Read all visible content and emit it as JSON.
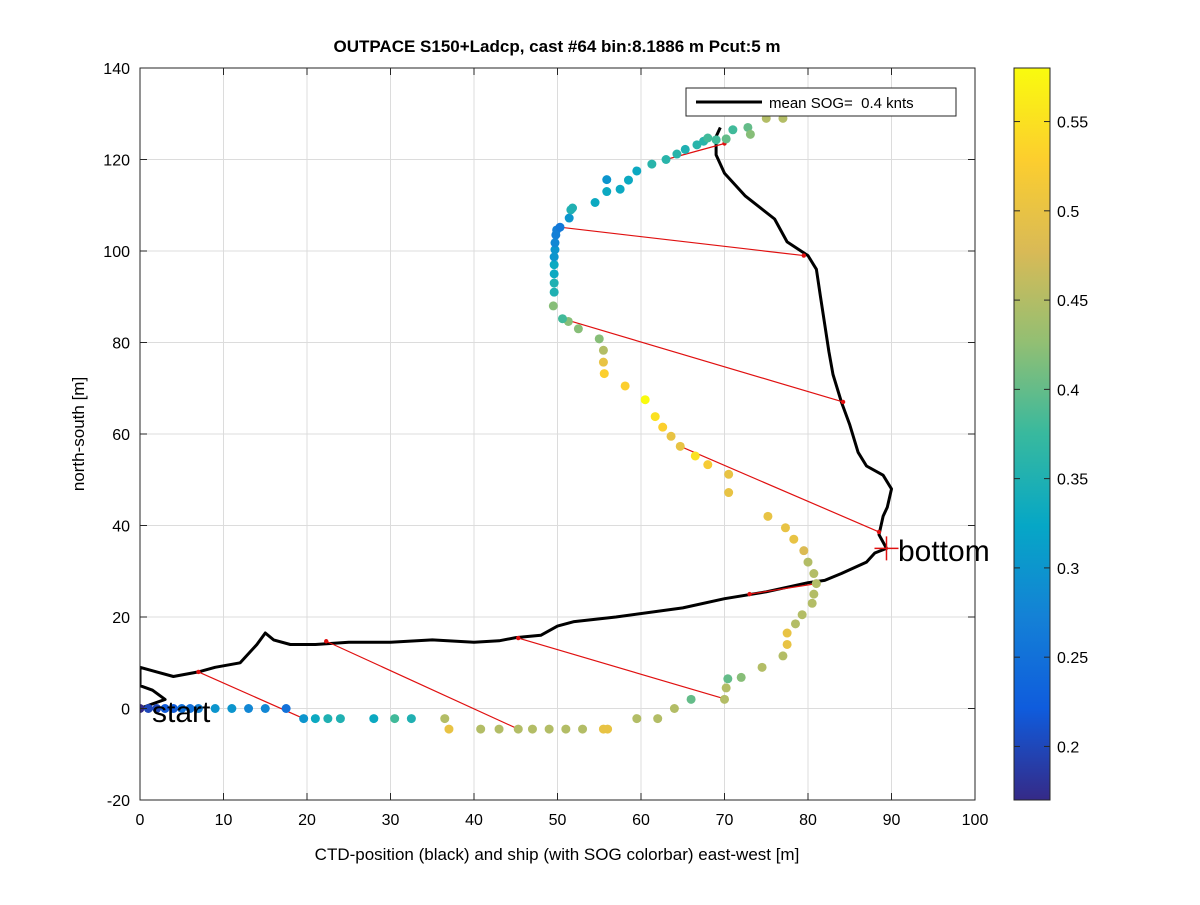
{
  "chart_data": {
    "type": "scatter",
    "title": "OUTPACE S150+Ladcp, cast #64 bin:8.1886 m  Pcut:5 m",
    "xlabel": "CTD-position (black) and ship (with SOG colorbar) east-west [m]",
    "ylabel": "north-south [m]",
    "xlim": [
      0,
      100
    ],
    "ylim": [
      -20,
      140
    ],
    "xticks": [
      0,
      10,
      20,
      30,
      40,
      50,
      60,
      70,
      80,
      90,
      100
    ],
    "yticks": [
      -20,
      0,
      20,
      40,
      60,
      80,
      100,
      120,
      140
    ],
    "grid": true,
    "legend": {
      "position": "top-right",
      "entries": [
        "mean SOG=  0.4 knts"
      ]
    },
    "annotations": [
      {
        "text": "start",
        "x": 0.2,
        "y": 0
      },
      {
        "text": "bottom",
        "x": 89.4,
        "y": 35
      }
    ],
    "colorbar": {
      "clim": [
        0.17,
        0.58
      ],
      "ticks": [
        0.2,
        0.25,
        0.3,
        0.35,
        0.4,
        0.45,
        0.5,
        0.55
      ],
      "tick_labels": [
        "0.2",
        "0.25",
        "0.3",
        "0.35",
        "0.4",
        "0.45",
        "0.5",
        "0.55"
      ]
    },
    "ctd_track": [
      [
        0,
        0
      ],
      [
        1.5,
        1
      ],
      [
        3,
        2
      ],
      [
        1.5,
        4
      ],
      [
        0,
        5
      ],
      [
        0,
        9
      ],
      [
        2,
        8
      ],
      [
        4,
        7
      ],
      [
        7,
        8
      ],
      [
        9,
        9
      ],
      [
        12,
        10
      ],
      [
        14,
        14
      ],
      [
        15,
        16.5
      ],
      [
        16,
        15
      ],
      [
        18,
        14
      ],
      [
        21,
        14
      ],
      [
        25,
        14.5
      ],
      [
        30,
        14.5
      ],
      [
        35,
        15
      ],
      [
        40,
        14.5
      ],
      [
        43,
        14.8
      ],
      [
        45,
        15.5
      ],
      [
        48,
        16
      ],
      [
        50,
        18
      ],
      [
        52,
        19
      ],
      [
        57,
        20
      ],
      [
        65,
        22
      ],
      [
        70,
        24
      ],
      [
        75,
        25.5
      ],
      [
        80,
        27.5
      ],
      [
        82,
        28
      ],
      [
        84,
        29.5
      ],
      [
        87,
        32
      ],
      [
        88,
        34
      ],
      [
        89.4,
        35
      ],
      [
        88.5,
        38
      ],
      [
        89,
        42
      ],
      [
        89.5,
        44
      ],
      [
        90,
        48
      ],
      [
        89,
        51
      ],
      [
        87,
        53
      ],
      [
        86,
        56
      ],
      [
        85,
        62
      ],
      [
        84,
        67
      ],
      [
        83,
        73
      ],
      [
        82.5,
        78
      ],
      [
        82,
        84
      ],
      [
        81.5,
        90
      ],
      [
        81,
        96
      ],
      [
        80,
        99
      ],
      [
        77.5,
        102
      ],
      [
        76,
        107
      ],
      [
        72.5,
        112
      ],
      [
        70,
        117
      ],
      [
        69,
        121
      ],
      [
        69,
        125
      ],
      [
        69.5,
        127
      ]
    ],
    "ship_points": [
      [
        0,
        0,
        0.17
      ],
      [
        1,
        0,
        0.2
      ],
      [
        2,
        0,
        0.2
      ],
      [
        3,
        0,
        0.22
      ],
      [
        4,
        0,
        0.22
      ],
      [
        5,
        0,
        0.25
      ],
      [
        6,
        0,
        0.25
      ],
      [
        7,
        0,
        0.27
      ],
      [
        9,
        0,
        0.3
      ],
      [
        11,
        0,
        0.3
      ],
      [
        13,
        0,
        0.28
      ],
      [
        15,
        0,
        0.28
      ],
      [
        17.5,
        0,
        0.25
      ],
      [
        19.6,
        -2.2,
        0.3
      ],
      [
        21,
        -2.2,
        0.33
      ],
      [
        22.5,
        -2.2,
        0.35
      ],
      [
        24,
        -2.2,
        0.35
      ],
      [
        28,
        -2.2,
        0.33
      ],
      [
        30.5,
        -2.2,
        0.38
      ],
      [
        32.5,
        -2.2,
        0.35
      ],
      [
        36.5,
        -2.2,
        0.45
      ],
      [
        37,
        -4.5,
        0.5
      ],
      [
        40.8,
        -4.5,
        0.45
      ],
      [
        43,
        -4.5,
        0.45
      ],
      [
        45.3,
        -4.5,
        0.45
      ],
      [
        47,
        -4.5,
        0.45
      ],
      [
        49,
        -4.5,
        0.45
      ],
      [
        51,
        -4.5,
        0.45
      ],
      [
        53,
        -4.5,
        0.45
      ],
      [
        55.5,
        -4.5,
        0.5
      ],
      [
        56,
        -4.5,
        0.5
      ],
      [
        59.5,
        -2.2,
        0.45
      ],
      [
        62,
        -2.2,
        0.45
      ],
      [
        64,
        0,
        0.45
      ],
      [
        66,
        2,
        0.4
      ],
      [
        70,
        2,
        0.45
      ],
      [
        70.2,
        4.5,
        0.45
      ],
      [
        70.4,
        6.5,
        0.4
      ],
      [
        72,
        6.8,
        0.42
      ],
      [
        74.5,
        9,
        0.45
      ],
      [
        77,
        11.5,
        0.45
      ],
      [
        77.5,
        14,
        0.5
      ],
      [
        77.5,
        16.5,
        0.5
      ],
      [
        78.5,
        18.5,
        0.45
      ],
      [
        79.3,
        20.5,
        0.45
      ],
      [
        80.5,
        23,
        0.45
      ],
      [
        80.7,
        25,
        0.45
      ],
      [
        81,
        27.3,
        0.45
      ],
      [
        80.7,
        29.5,
        0.45
      ],
      [
        80,
        32,
        0.45
      ],
      [
        79.5,
        34.5,
        0.48
      ],
      [
        78.3,
        37,
        0.5
      ],
      [
        77.3,
        39.5,
        0.5
      ],
      [
        75.2,
        42,
        0.5
      ],
      [
        70.5,
        47.2,
        0.5
      ],
      [
        70.5,
        51.2,
        0.5
      ],
      [
        68,
        53.3,
        0.52
      ],
      [
        66.5,
        55.2,
        0.55
      ],
      [
        64.7,
        57.3,
        0.5
      ],
      [
        63.6,
        59.5,
        0.5
      ],
      [
        62.6,
        61.5,
        0.53
      ],
      [
        61.7,
        63.8,
        0.55
      ],
      [
        60.5,
        67.5,
        0.58
      ],
      [
        58.1,
        70.5,
        0.53
      ],
      [
        55.6,
        73.2,
        0.53
      ],
      [
        55.5,
        75.7,
        0.5
      ],
      [
        55.5,
        78.3,
        0.45
      ],
      [
        55,
        80.8,
        0.42
      ],
      [
        52.5,
        83,
        0.42
      ],
      [
        51.3,
        84.6,
        0.42
      ],
      [
        50.6,
        85.2,
        0.38
      ],
      [
        49.5,
        88,
        0.42
      ],
      [
        49.6,
        91,
        0.35
      ],
      [
        49.6,
        93,
        0.35
      ],
      [
        49.6,
        95,
        0.33
      ],
      [
        49.6,
        97,
        0.33
      ],
      [
        49.6,
        98.7,
        0.3
      ],
      [
        49.7,
        100.3,
        0.3
      ],
      [
        49.7,
        101.8,
        0.28
      ],
      [
        49.8,
        103.5,
        0.27
      ],
      [
        49.9,
        104.6,
        0.27
      ],
      [
        50.3,
        105.2,
        0.26
      ],
      [
        51.4,
        107.2,
        0.3
      ],
      [
        51.6,
        109,
        0.35
      ],
      [
        51.8,
        109.4,
        0.35
      ],
      [
        54.5,
        110.6,
        0.33
      ],
      [
        55.9,
        113,
        0.33
      ],
      [
        55.9,
        115.6,
        0.3
      ],
      [
        57.5,
        113.5,
        0.33
      ],
      [
        58.5,
        115.5,
        0.33
      ],
      [
        59.5,
        117.5,
        0.33
      ],
      [
        61.3,
        119,
        0.36
      ],
      [
        63,
        120,
        0.36
      ],
      [
        64.3,
        121.2,
        0.36
      ],
      [
        65.3,
        122.2,
        0.35
      ],
      [
        66.7,
        123.2,
        0.36
      ],
      [
        67.5,
        124,
        0.36
      ],
      [
        68,
        124.7,
        0.38
      ],
      [
        69,
        124.3,
        0.38
      ],
      [
        70.2,
        124.5,
        0.4
      ],
      [
        71,
        126.5,
        0.38
      ],
      [
        72.8,
        127,
        0.4
      ],
      [
        73.1,
        125.5,
        0.42
      ],
      [
        75,
        129,
        0.45
      ],
      [
        77,
        129,
        0.45
      ]
    ],
    "connections": [
      {
        "ship": [
          0,
          0
        ],
        "ctd": [
          0,
          0
        ]
      },
      {
        "ship": [
          19.6,
          -2.2
        ],
        "ctd": [
          7,
          8
        ]
      },
      {
        "ship": [
          45.3,
          -4.5
        ],
        "ctd": [
          22.3,
          14.7
        ]
      },
      {
        "ship": [
          70.2,
          2
        ],
        "ctd": [
          45.3,
          15.4
        ]
      },
      {
        "ship": [
          81,
          27.3
        ],
        "ctd": [
          73,
          25
        ]
      },
      {
        "ship": [
          64.7,
          57.3
        ],
        "ctd": [
          88.5,
          38.6
        ]
      },
      {
        "ship": [
          50.6,
          85.2
        ],
        "ctd": [
          84.2,
          67
        ]
      },
      {
        "ship": [
          50.3,
          105.2
        ],
        "ctd": [
          79.5,
          99
        ]
      },
      {
        "ship": [
          63,
          120
        ],
        "ctd": [
          70,
          123.5
        ]
      }
    ]
  }
}
